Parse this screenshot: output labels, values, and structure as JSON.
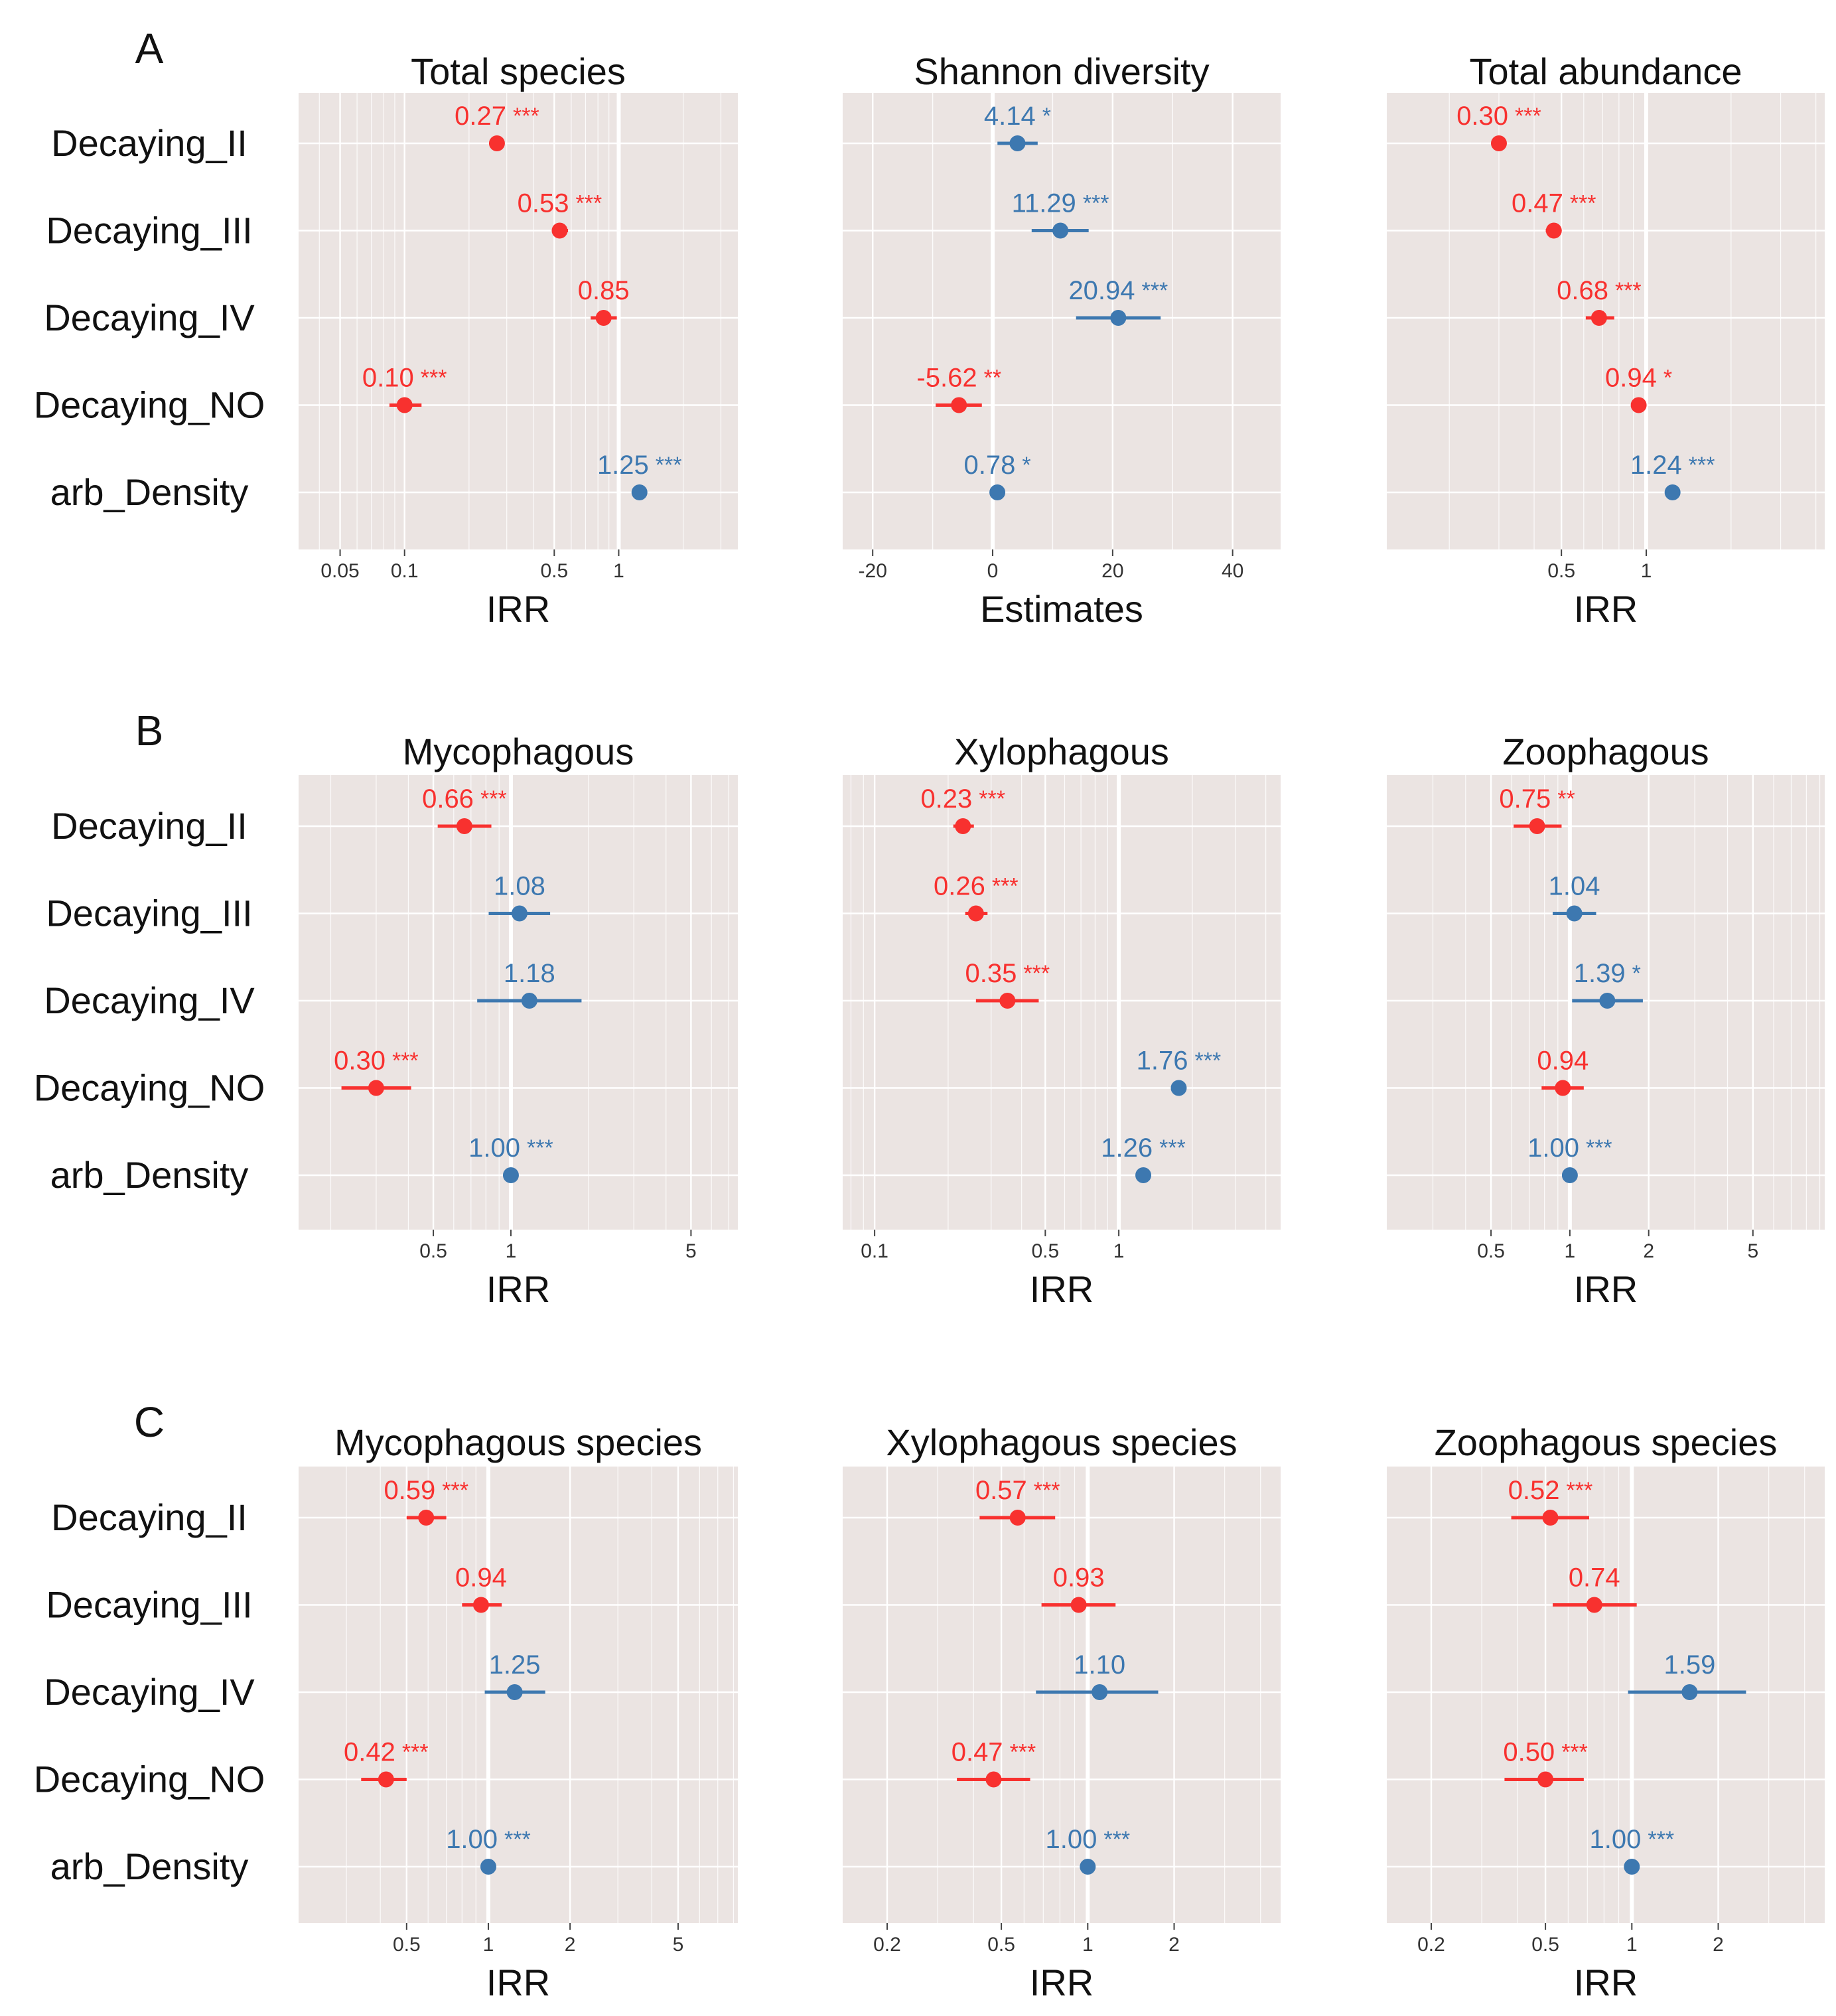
{
  "colors": {
    "negative": "#f8312f",
    "positive": "#3d78b0",
    "panel_bg": "#ebe4e2",
    "grid": "#ffffff"
  },
  "rows": [
    "Decaying_II",
    "Decaying_III",
    "Decaying_IV",
    "Decaying_NO",
    "arb_Density"
  ],
  "groups": [
    {
      "letter": "A",
      "panels": [
        {
          "title": "Total species",
          "xlabel": "IRR",
          "scale": "log",
          "xlim": [
            0.032,
            3.6
          ],
          "ref": 1,
          "ticks": [
            0.05,
            0.1,
            0.5,
            1
          ],
          "tick_labels": [
            "0.05",
            "0.1",
            "0.5",
            "1"
          ],
          "points": [
            {
              "row": "Decaying_II",
              "value": 0.27,
              "lo": 0.25,
              "hi": 0.29,
              "label": "0.27",
              "stars": "***",
              "color": "negative"
            },
            {
              "row": "Decaying_III",
              "value": 0.53,
              "lo": 0.49,
              "hi": 0.58,
              "label": "0.53",
              "stars": "***",
              "color": "negative"
            },
            {
              "row": "Decaying_IV",
              "value": 0.85,
              "lo": 0.74,
              "hi": 0.98,
              "label": "0.85",
              "stars": "",
              "color": "negative"
            },
            {
              "row": "Decaying_NO",
              "value": 0.1,
              "lo": 0.085,
              "hi": 0.12,
              "label": "0.10",
              "stars": "***",
              "color": "negative"
            },
            {
              "row": "arb_Density",
              "value": 1.25,
              "lo": 1.24,
              "hi": 1.26,
              "label": "1.25",
              "stars": "***",
              "color": "positive"
            }
          ]
        },
        {
          "title": "Shannon diversity",
          "xlabel": "Estimates",
          "scale": "linear",
          "xlim": [
            -25,
            48
          ],
          "ref": 0,
          "ticks": [
            -20,
            0,
            20,
            40
          ],
          "tick_labels": [
            "-20",
            "0",
            "20",
            "40"
          ],
          "points": [
            {
              "row": "Decaying_II",
              "value": 4.14,
              "lo": 0.8,
              "hi": 7.5,
              "label": "4.14",
              "stars": "*",
              "color": "positive"
            },
            {
              "row": "Decaying_III",
              "value": 11.29,
              "lo": 6.5,
              "hi": 16.0,
              "label": "11.29",
              "stars": "***",
              "color": "positive"
            },
            {
              "row": "Decaying_IV",
              "value": 20.94,
              "lo": 13.9,
              "hi": 28.0,
              "label": "20.94",
              "stars": "***",
              "color": "positive"
            },
            {
              "row": "Decaying_NO",
              "value": -5.62,
              "lo": -9.5,
              "hi": -1.8,
              "label": "-5.62",
              "stars": "**",
              "color": "negative"
            },
            {
              "row": "arb_Density",
              "value": 0.78,
              "lo": 0.3,
              "hi": 1.3,
              "label": "0.78",
              "stars": "*",
              "color": "positive"
            }
          ]
        },
        {
          "title": "Total abundance",
          "xlabel": "IRR",
          "scale": "log",
          "xlim": [
            0.12,
            4.3
          ],
          "ref": 1,
          "ticks": [
            0.5,
            1
          ],
          "tick_labels": [
            "0.5",
            "1"
          ],
          "points": [
            {
              "row": "Decaying_II",
              "value": 0.3,
              "lo": 0.285,
              "hi": 0.315,
              "label": "0.30",
              "stars": "***",
              "color": "negative"
            },
            {
              "row": "Decaying_III",
              "value": 0.47,
              "lo": 0.44,
              "hi": 0.5,
              "label": "0.47",
              "stars": "***",
              "color": "negative"
            },
            {
              "row": "Decaying_IV",
              "value": 0.68,
              "lo": 0.61,
              "hi": 0.77,
              "label": "0.68",
              "stars": "***",
              "color": "negative"
            },
            {
              "row": "Decaying_NO",
              "value": 0.94,
              "lo": 0.92,
              "hi": 0.96,
              "label": "0.94",
              "stars": "*",
              "color": "negative"
            },
            {
              "row": "arb_Density",
              "value": 1.24,
              "lo": 1.235,
              "hi": 1.245,
              "label": "1.24",
              "stars": "***",
              "color": "positive"
            }
          ]
        }
      ]
    },
    {
      "letter": "B",
      "panels": [
        {
          "title": "Mycophagous",
          "xlabel": "IRR",
          "scale": "log",
          "xlim": [
            0.15,
            7.6
          ],
          "ref": 1,
          "ticks": [
            0.5,
            1,
            5
          ],
          "tick_labels": [
            "0.5",
            "1",
            "5"
          ],
          "points": [
            {
              "row": "Decaying_II",
              "value": 0.66,
              "lo": 0.52,
              "hi": 0.84,
              "label": "0.66",
              "stars": "***",
              "color": "negative"
            },
            {
              "row": "Decaying_III",
              "value": 1.08,
              "lo": 0.82,
              "hi": 1.42,
              "label": "1.08",
              "stars": "",
              "color": "positive"
            },
            {
              "row": "Decaying_IV",
              "value": 1.18,
              "lo": 0.74,
              "hi": 1.88,
              "label": "1.18",
              "stars": "",
              "color": "positive"
            },
            {
              "row": "Decaying_NO",
              "value": 0.3,
              "lo": 0.22,
              "hi": 0.41,
              "label": "0.30",
              "stars": "***",
              "color": "negative"
            },
            {
              "row": "arb_Density",
              "value": 1.0,
              "lo": 0.995,
              "hi": 1.005,
              "label": "1.00",
              "stars": "***",
              "color": "positive"
            }
          ]
        },
        {
          "title": "Xylophagous",
          "xlabel": "IRR",
          "scale": "log",
          "xlim": [
            0.074,
            4.6
          ],
          "ref": 1,
          "ticks": [
            0.1,
            0.5,
            1
          ],
          "tick_labels": [
            "0.1",
            "0.5",
            "1"
          ],
          "points": [
            {
              "row": "Decaying_II",
              "value": 0.23,
              "lo": 0.21,
              "hi": 0.255,
              "label": "0.23",
              "stars": "***",
              "color": "negative"
            },
            {
              "row": "Decaying_III",
              "value": 0.26,
              "lo": 0.235,
              "hi": 0.29,
              "label": "0.26",
              "stars": "***",
              "color": "negative"
            },
            {
              "row": "Decaying_IV",
              "value": 0.35,
              "lo": 0.26,
              "hi": 0.47,
              "label": "0.35",
              "stars": "***",
              "color": "negative"
            },
            {
              "row": "Decaying_NO",
              "value": 1.76,
              "lo": 1.74,
              "hi": 1.78,
              "label": "1.76",
              "stars": "***",
              "color": "positive"
            },
            {
              "row": "arb_Density",
              "value": 1.26,
              "lo": 1.255,
              "hi": 1.265,
              "label": "1.26",
              "stars": "***",
              "color": "positive"
            }
          ]
        },
        {
          "title": "Zoophagous",
          "xlabel": "IRR",
          "scale": "log",
          "xlim": [
            0.2,
            9.4
          ],
          "ref": 1,
          "ticks": [
            0.5,
            1,
            2,
            5
          ],
          "tick_labels": [
            "0.5",
            "1",
            "2",
            "5"
          ],
          "points": [
            {
              "row": "Decaying_II",
              "value": 0.75,
              "lo": 0.61,
              "hi": 0.93,
              "label": "0.75",
              "stars": "**",
              "color": "negative"
            },
            {
              "row": "Decaying_III",
              "value": 1.04,
              "lo": 0.86,
              "hi": 1.26,
              "label": "1.04",
              "stars": "",
              "color": "positive"
            },
            {
              "row": "Decaying_IV",
              "value": 1.39,
              "lo": 1.02,
              "hi": 1.9,
              "label": "1.39",
              "stars": "*",
              "color": "positive"
            },
            {
              "row": "Decaying_NO",
              "value": 0.94,
              "lo": 0.78,
              "hi": 1.13,
              "label": "0.94",
              "stars": "",
              "color": "negative"
            },
            {
              "row": "arb_Density",
              "value": 1.0,
              "lo": 0.995,
              "hi": 1.005,
              "label": "1.00",
              "stars": "***",
              "color": "positive"
            }
          ]
        }
      ]
    },
    {
      "letter": "C",
      "panels": [
        {
          "title": "Mycophagous species",
          "xlabel": "IRR",
          "scale": "log",
          "xlim": [
            0.2,
            8.3
          ],
          "ref": 1,
          "ticks": [
            0.5,
            1,
            2,
            5
          ],
          "tick_labels": [
            "0.5",
            "1",
            "2",
            "5"
          ],
          "points": [
            {
              "row": "Decaying_II",
              "value": 0.59,
              "lo": 0.5,
              "hi": 0.7,
              "label": "0.59",
              "stars": "***",
              "color": "negative"
            },
            {
              "row": "Decaying_III",
              "value": 0.94,
              "lo": 0.8,
              "hi": 1.12,
              "label": "0.94",
              "stars": "",
              "color": "negative"
            },
            {
              "row": "Decaying_IV",
              "value": 1.25,
              "lo": 0.97,
              "hi": 1.62,
              "label": "1.25",
              "stars": "",
              "color": "positive"
            },
            {
              "row": "Decaying_NO",
              "value": 0.42,
              "lo": 0.34,
              "hi": 0.5,
              "label": "0.42",
              "stars": "***",
              "color": "negative"
            },
            {
              "row": "arb_Density",
              "value": 1.0,
              "lo": 0.995,
              "hi": 1.005,
              "label": "1.00",
              "stars": "***",
              "color": "positive"
            }
          ]
        },
        {
          "title": "Xylophagous species",
          "xlabel": "IRR",
          "scale": "log",
          "xlim": [
            0.14,
            4.7
          ],
          "ref": 1,
          "ticks": [
            0.2,
            0.5,
            1,
            2
          ],
          "tick_labels": [
            "0.2",
            "0.5",
            "1",
            "2"
          ],
          "points": [
            {
              "row": "Decaying_II",
              "value": 0.57,
              "lo": 0.42,
              "hi": 0.77,
              "label": "0.57",
              "stars": "***",
              "color": "negative"
            },
            {
              "row": "Decaying_III",
              "value": 0.93,
              "lo": 0.69,
              "hi": 1.25,
              "label": "0.93",
              "stars": "",
              "color": "negative"
            },
            {
              "row": "Decaying_IV",
              "value": 1.1,
              "lo": 0.66,
              "hi": 1.76,
              "label": "1.10",
              "stars": "",
              "color": "positive"
            },
            {
              "row": "Decaying_NO",
              "value": 0.47,
              "lo": 0.35,
              "hi": 0.63,
              "label": "0.47",
              "stars": "***",
              "color": "negative"
            },
            {
              "row": "arb_Density",
              "value": 1.0,
              "lo": 0.995,
              "hi": 1.005,
              "label": "1.00",
              "stars": "***",
              "color": "positive"
            }
          ]
        },
        {
          "title": "Zoophagous species",
          "xlabel": "IRR",
          "scale": "log",
          "xlim": [
            0.14,
            4.7
          ],
          "ref": 1,
          "ticks": [
            0.2,
            0.5,
            1,
            2
          ],
          "tick_labels": [
            "0.2",
            "0.5",
            "1",
            "2"
          ],
          "points": [
            {
              "row": "Decaying_II",
              "value": 0.52,
              "lo": 0.38,
              "hi": 0.71,
              "label": "0.52",
              "stars": "***",
              "color": "negative"
            },
            {
              "row": "Decaying_III",
              "value": 0.74,
              "lo": 0.53,
              "hi": 1.04,
              "label": "0.74",
              "stars": "",
              "color": "negative"
            },
            {
              "row": "Decaying_IV",
              "value": 1.59,
              "lo": 0.97,
              "hi": 2.5,
              "label": "1.59",
              "stars": "",
              "color": "positive"
            },
            {
              "row": "Decaying_NO",
              "value": 0.5,
              "lo": 0.36,
              "hi": 0.68,
              "label": "0.50",
              "stars": "***",
              "color": "negative"
            },
            {
              "row": "arb_Density",
              "value": 1.0,
              "lo": 0.995,
              "hi": 1.005,
              "label": "1.00",
              "stars": "***",
              "color": "positive"
            }
          ]
        }
      ]
    }
  ],
  "chart_data": {
    "type": "forest",
    "note": "Nine forest plots (3 groups x 3 panels). Each point is an estimate (IRR on log scale, or linear estimate) with a confidence interval; red = negative effect, blue = positive effect. Full series listed under groups[].panels[].points.",
    "group_letters": [
      "A",
      "B",
      "C"
    ],
    "row_categories": [
      "Decaying_II",
      "Decaying_III",
      "Decaying_IV",
      "Decaying_NO",
      "arb_Density"
    ]
  }
}
